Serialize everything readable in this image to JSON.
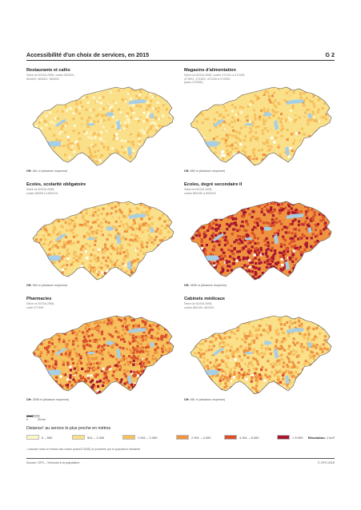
{
  "header": {
    "title": "Accessibilité d'un choix de services, en 2015",
    "figure_number": "G 2"
  },
  "panels": [
    {
      "title": "Restaurants et cafés",
      "source": "Selon la NOGA 2008, codes 561001,\n561002, 563001, 563002",
      "ch_label": "CH:",
      "ch_value": "461 m (distance moyenne)",
      "intensity": 0.22
    },
    {
      "title": "Magasins d'alimentation",
      "source": "Selon la NOGA 2008, codes 471101 à 471105,\n471901, 471902, 472100 à 472900\n(sans 472500)",
      "ch_label": "CH:",
      "ch_value": "680 m (distance moyenne)",
      "intensity": 0.3
    },
    {
      "title": "Ecoles, scolarité obligatoire",
      "source": "Selon la NOGA 2008,\ncodes 852001 à 852101",
      "ch_label": "CH:",
      "ch_value": "984 m (distance moyenne)",
      "intensity": 0.4
    },
    {
      "title": "Ecoles, degré secondaire II",
      "source": "Selon la NOGA 2008,\ncodes 853100 à 853200",
      "ch_label": "CH:",
      "ch_value": "3806 m (distance moyenne)",
      "intensity": 0.88
    },
    {
      "title": "Pharmacies",
      "source": "Selon la NOGA 2008,\ncode 477300",
      "ch_label": "CH:",
      "ch_value": "2598 m (distance moyenne)",
      "intensity": 0.68
    },
    {
      "title": "Cabinets médicaux",
      "source": "Selon la NOGA 2008,\ncodes 862100, 862200",
      "ch_label": "CH:",
      "ch_value": "981 m (distance moyenne)",
      "intensity": 0.46
    }
  ],
  "scale": {
    "zero": "0",
    "end": "25 km"
  },
  "legend": {
    "title": "Distance¹ au service le plus proche en mètres",
    "classes": [
      {
        "label": "0 – 500",
        "color": "#fdf7c8"
      },
      {
        "label": "501 – 1 000",
        "color": "#fbe08a"
      },
      {
        "label": "1 001 – 2 000",
        "color": "#f7c05e"
      },
      {
        "label": "2 001 – 4 000",
        "color": "#ef9340"
      },
      {
        "label": "4 001 – 8 000",
        "color": "#d9502a"
      },
      {
        "label": "> 8 000",
        "color": "#a81530"
      }
    ],
    "resolution_label": "Résolution:",
    "resolution_value": "1 km²"
  },
  "colors": {
    "lake": "#a6cfe6",
    "border": "#555555",
    "no_pop": "#ffffff"
  },
  "footnote": "¹ calculée selon le réseau des routes (swissTLM3D) et pondérée par la population résidante",
  "source": "Source: OFS – Services à la population",
  "copyright": "© OFS 2018"
}
